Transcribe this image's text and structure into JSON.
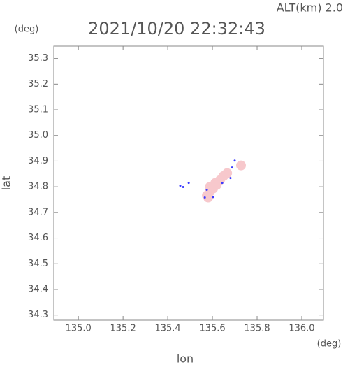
{
  "chart_data": {
    "type": "scatter",
    "title": "2021/10/20 22:32:43",
    "altitude_label": "ALT(km) 2.0",
    "x_label": "lon",
    "y_label": "lat",
    "x_unit": "(deg)",
    "y_unit": "(deg)",
    "xlim": [
      134.89,
      136.097
    ],
    "ylim": [
      34.28,
      35.348
    ],
    "xticks": [
      {
        "value": 135.0,
        "label": "135.0"
      },
      135.2,
      135.4,
      135.6,
      135.8,
      {
        "value": 136.0,
        "label": "136.0"
      }
    ],
    "yticks": [
      {
        "value": 34.3,
        "label": "34.3"
      },
      34.4,
      34.5,
      34.6,
      34.7,
      34.8,
      34.9,
      {
        "value": 35.0,
        "label": "35.0"
      },
      35.1,
      35.2,
      35.3
    ],
    "series": [
      {
        "color": "#f7c8cc",
        "x": [
          135.575,
          135.588,
          135.603,
          135.619,
          135.634,
          135.65,
          135.588,
          135.613,
          135.581,
          135.666,
          135.728
        ],
        "values": [
          34.766,
          34.78,
          34.793,
          34.807,
          34.826,
          34.842,
          34.799,
          34.815,
          34.758,
          34.853,
          34.883
        ]
      },
      {
        "color": "#3a3aff",
        "x": [
          135.456,
          135.469,
          135.494,
          135.566,
          135.575,
          135.644,
          135.681,
          135.688,
          135.7,
          135.603
        ],
        "values": [
          34.804,
          34.799,
          34.815,
          34.758,
          34.788,
          34.815,
          34.834,
          34.875,
          34.902,
          34.76
        ]
      }
    ]
  }
}
